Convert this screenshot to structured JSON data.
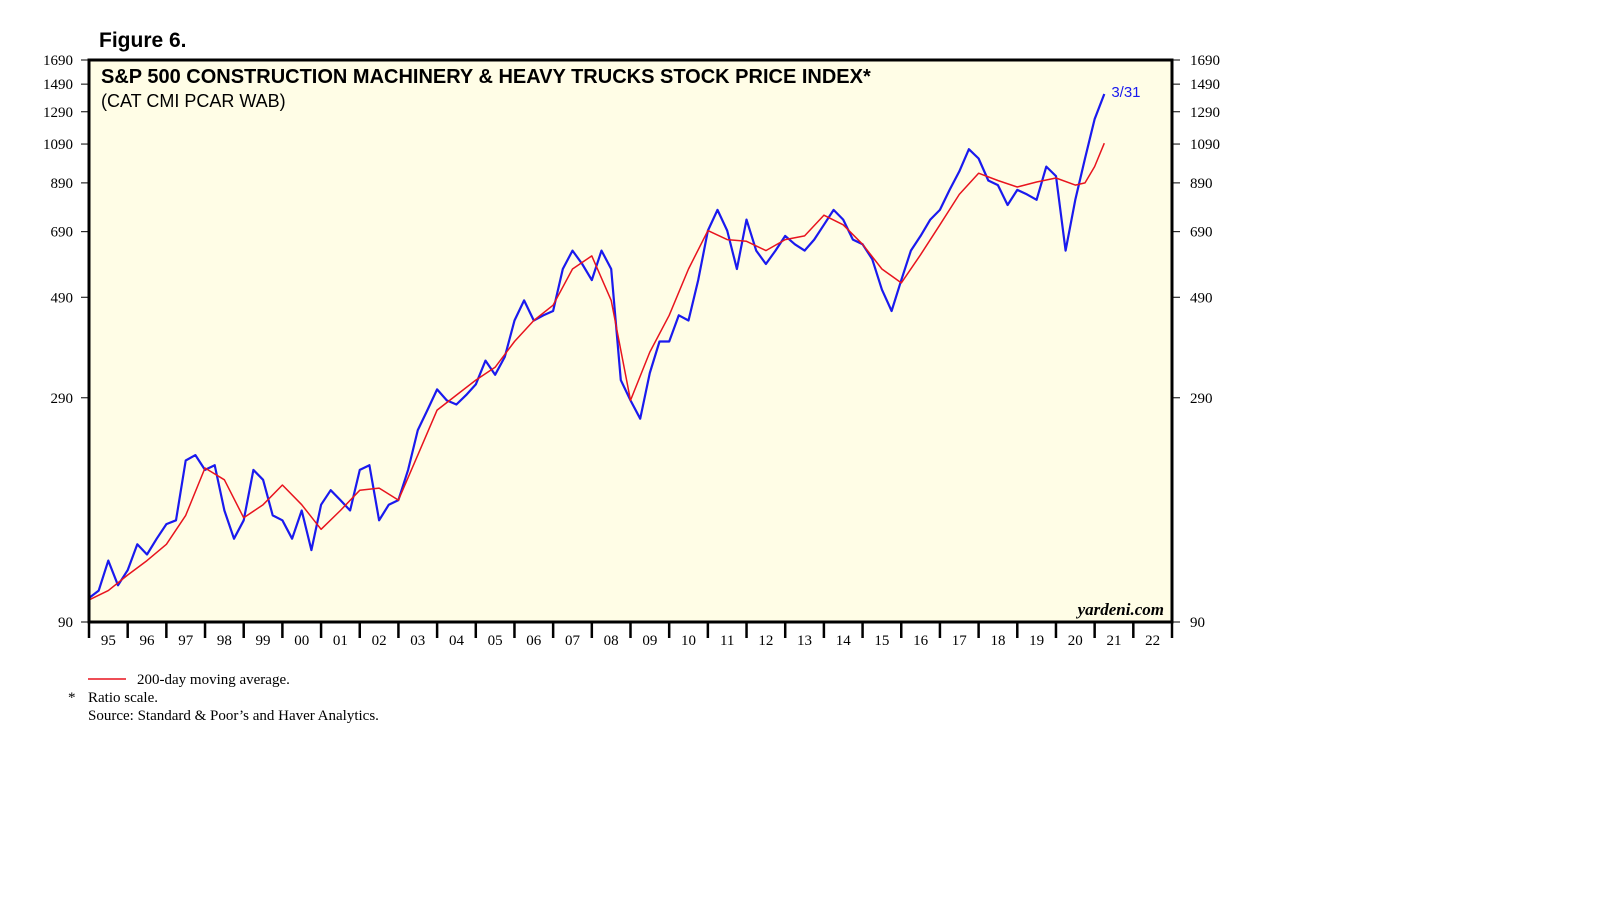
{
  "chart_data": {
    "type": "line",
    "figure_label": "Figure 6.",
    "title": "S&P 500 CONSTRUCTION MACHINERY & HEAVY TRUCKS STOCK PRICE INDEX*",
    "subtitle": "(CAT CMI PCAR WAB)",
    "annotation": "3/31",
    "watermark": "yardeni.com",
    "footnote_marker": "*",
    "notes": [
      "Ratio scale.",
      "Source: Standard & Poor’s and Haver Analytics."
    ],
    "log_scale": true,
    "background": "#fffde6",
    "xlim": [
      1995,
      2023
    ],
    "xticks": [
      {
        "value": 1995,
        "label": "95"
      },
      {
        "value": 1996,
        "label": "96"
      },
      {
        "value": 1997,
        "label": "97"
      },
      {
        "value": 1998,
        "label": "98"
      },
      {
        "value": 1999,
        "label": "99"
      },
      {
        "value": 2000,
        "label": "00"
      },
      {
        "value": 2001,
        "label": "01"
      },
      {
        "value": 2002,
        "label": "02"
      },
      {
        "value": 2003,
        "label": "03"
      },
      {
        "value": 2004,
        "label": "04"
      },
      {
        "value": 2005,
        "label": "05"
      },
      {
        "value": 2006,
        "label": "06"
      },
      {
        "value": 2007,
        "label": "07"
      },
      {
        "value": 2008,
        "label": "08"
      },
      {
        "value": 2009,
        "label": "09"
      },
      {
        "value": 2010,
        "label": "10"
      },
      {
        "value": 2011,
        "label": "11"
      },
      {
        "value": 2012,
        "label": "12"
      },
      {
        "value": 2013,
        "label": "13"
      },
      {
        "value": 2014,
        "label": "14"
      },
      {
        "value": 2015,
        "label": "15"
      },
      {
        "value": 2016,
        "label": "16"
      },
      {
        "value": 2017,
        "label": "17"
      },
      {
        "value": 2018,
        "label": "18"
      },
      {
        "value": 2019,
        "label": "19"
      },
      {
        "value": 2020,
        "label": "20"
      },
      {
        "value": 2021,
        "label": "21"
      },
      {
        "value": 2022,
        "label": "22"
      }
    ],
    "ylim": [
      90,
      1690
    ],
    "yticks": [
      90,
      290,
      490,
      690,
      890,
      1090,
      1290,
      1490,
      1690
    ],
    "series": [
      {
        "color": "#1a1aee",
        "width": 2.2,
        "x": [
          1995,
          1995.25,
          1995.5,
          1995.75,
          1996,
          1996.25,
          1996.5,
          1996.75,
          1997,
          1997.25,
          1997.5,
          1997.75,
          1998,
          1998.25,
          1998.5,
          1998.75,
          1999,
          1999.25,
          1999.5,
          1999.75,
          2000,
          2000.25,
          2000.5,
          2000.75,
          2001,
          2001.25,
          2001.5,
          2001.75,
          2002,
          2002.25,
          2002.5,
          2002.75,
          2003,
          2003.25,
          2003.5,
          2003.75,
          2004,
          2004.25,
          2004.5,
          2004.75,
          2005,
          2005.25,
          2005.5,
          2005.75,
          2006,
          2006.25,
          2006.5,
          2006.75,
          2007,
          2007.25,
          2007.5,
          2007.75,
          2008,
          2008.25,
          2008.5,
          2008.75,
          2009,
          2009.25,
          2009.5,
          2009.75,
          2010,
          2010.25,
          2010.5,
          2010.75,
          2011,
          2011.25,
          2011.5,
          2011.75,
          2012,
          2012.25,
          2012.5,
          2012.75,
          2013,
          2013.25,
          2013.5,
          2013.75,
          2014,
          2014.25,
          2014.5,
          2014.75,
          2015,
          2015.25,
          2015.5,
          2015.75,
          2016,
          2016.25,
          2016.5,
          2016.75,
          2017,
          2017.25,
          2017.5,
          2017.75,
          2018,
          2018.25,
          2018.5,
          2018.75,
          2019,
          2019.25,
          2019.5,
          2019.75,
          2020,
          2020.25,
          2020.5,
          2020.75,
          2021,
          2021.25
        ],
        "values": [
          102,
          106,
          124,
          109,
          118,
          135,
          128,
          139,
          150,
          153,
          209,
          215,
          199,
          204,
          161,
          139,
          153,
          199,
          189,
          157,
          153,
          139,
          161,
          131,
          166,
          179,
          170,
          161,
          199,
          204,
          153,
          166,
          170,
          199,
          245,
          272,
          303,
          286,
          280,
          294,
          311,
          352,
          327,
          359,
          434,
          482,
          434,
          446,
          456,
          568,
          625,
          583,
          536,
          625,
          568,
          318,
          286,
          260,
          330,
          389,
          389,
          446,
          434,
          536,
          694,
          773,
          694,
          568,
          735,
          625,
          583,
          625,
          675,
          646,
          625,
          662,
          715,
          773,
          735,
          662,
          646,
          598,
          510,
          456,
          536,
          625,
          675,
          735,
          773,
          858,
          945,
          1061,
          1011,
          901,
          880,
          793,
          858,
          838,
          815,
          969,
          922,
          625,
          815,
          1011,
          1241,
          1415
        ]
      },
      {
        "name": "200-day moving average.",
        "color": "#e8141e",
        "width": 1.5,
        "x": [
          1995,
          1995.5,
          1996,
          1996.5,
          1997,
          1997.5,
          1998,
          1998.5,
          1999,
          1999.5,
          2000,
          2000.5,
          2001,
          2001.5,
          2002,
          2002.5,
          2003,
          2003.5,
          2004,
          2004.5,
          2005,
          2005.5,
          2006,
          2006.5,
          2007,
          2007.5,
          2008,
          2008.5,
          2009,
          2009.5,
          2010,
          2010.5,
          2011,
          2011.5,
          2012,
          2012.5,
          2013,
          2013.5,
          2014,
          2014.5,
          2015,
          2015.5,
          2016,
          2016.5,
          2017,
          2017.5,
          2018,
          2018.5,
          2019,
          2019.5,
          2020,
          2020.5,
          2020.75,
          2021,
          2021.25
        ],
        "values": [
          101,
          106,
          115,
          124,
          135,
          157,
          201,
          189,
          155,
          166,
          184,
          166,
          146,
          161,
          179,
          181,
          170,
          215,
          272,
          294,
          318,
          340,
          389,
          434,
          470,
          568,
          608,
          482,
          286,
          368,
          446,
          568,
          694,
          662,
          656,
          625,
          662,
          675,
          752,
          715,
          646,
          568,
          528,
          612,
          715,
          838,
          936,
          901,
          871,
          894,
          913,
          880,
          890,
          969,
          1095
        ]
      }
    ]
  }
}
